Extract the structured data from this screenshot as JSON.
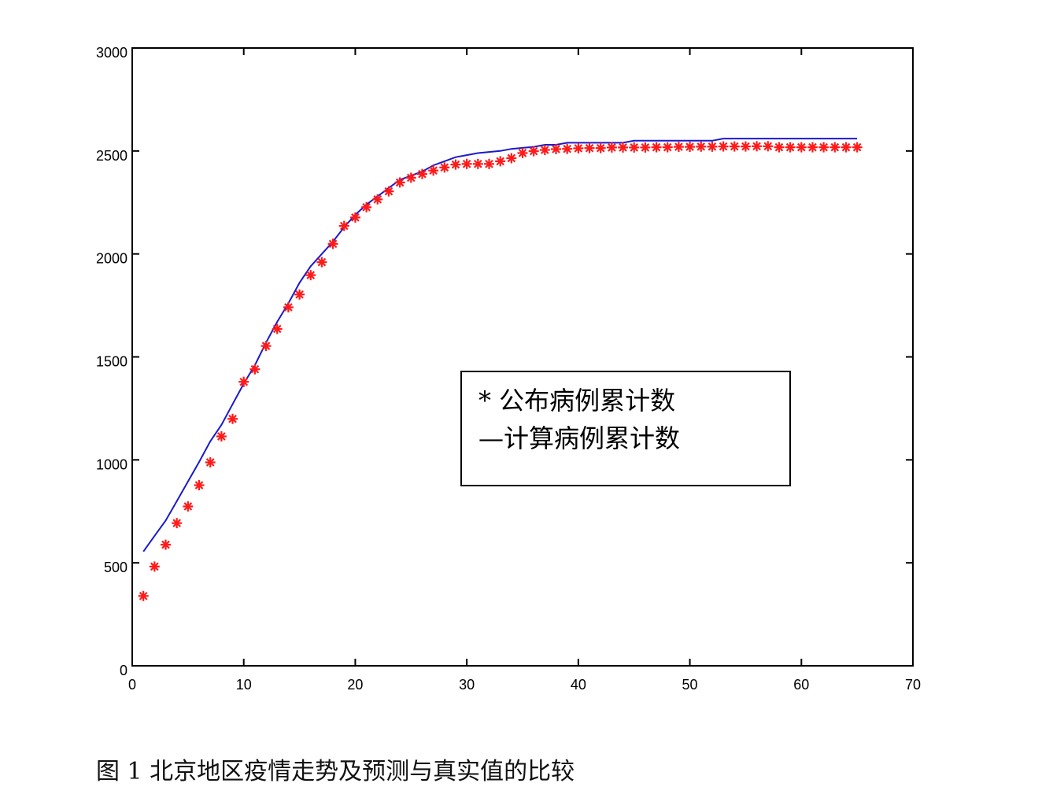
{
  "caption": "图 1 北京地区疫情走势及预测与真实值的比较",
  "colors": {
    "observed": "#ff1a1a",
    "computed": "#1a1acc",
    "axis": "#000000"
  },
  "chart_data": {
    "type": "line",
    "title": "",
    "xlabel": "",
    "ylabel": "",
    "xlim": [
      0,
      70
    ],
    "ylim": [
      0,
      3000
    ],
    "xticks": [
      0,
      10,
      20,
      30,
      40,
      50,
      60,
      70
    ],
    "yticks": [
      0,
      500,
      1000,
      1500,
      2000,
      2500,
      3000
    ],
    "grid": false,
    "legend_position": "center-right",
    "series": [
      {
        "name": "公布病例累计数",
        "legend_label": "*  公布病例累计数",
        "style": "marker-star",
        "x": [
          1,
          2,
          3,
          4,
          5,
          6,
          7,
          8,
          9,
          10,
          11,
          12,
          13,
          14,
          15,
          16,
          17,
          18,
          19,
          20,
          21,
          22,
          23,
          24,
          25,
          26,
          27,
          28,
          29,
          30,
          31,
          32,
          33,
          34,
          35,
          36,
          37,
          38,
          39,
          40,
          41,
          42,
          43,
          44,
          45,
          46,
          47,
          48,
          49,
          50,
          51,
          52,
          53,
          54,
          55,
          56,
          57,
          58,
          59,
          60,
          61,
          62,
          63,
          64,
          65
        ],
        "y": [
          339,
          482,
          588,
          693,
          774,
          877,
          988,
          1114,
          1199,
          1379,
          1440,
          1553,
          1636,
          1741,
          1803,
          1897,
          1960,
          2049,
          2136,
          2177,
          2227,
          2265,
          2304,
          2347,
          2370,
          2388,
          2405,
          2420,
          2434,
          2437,
          2437,
          2437,
          2450,
          2465,
          2490,
          2499,
          2505,
          2509,
          2510,
          2513,
          2514,
          2514,
          2517,
          2517,
          2517,
          2517,
          2518,
          2518,
          2520,
          2520,
          2521,
          2521,
          2522,
          2522,
          2522,
          2523,
          2523,
          2518,
          2518,
          2518,
          2518,
          2518,
          2518,
          2518,
          2518
        ]
      },
      {
        "name": "计算病例累计数",
        "legend_label": "—计算病例累计数",
        "style": "line",
        "x": [
          1,
          2,
          3,
          4,
          5,
          6,
          7,
          8,
          9,
          10,
          11,
          12,
          13,
          14,
          15,
          16,
          17,
          18,
          19,
          20,
          21,
          22,
          23,
          24,
          25,
          26,
          27,
          28,
          29,
          30,
          31,
          32,
          33,
          34,
          35,
          36,
          37,
          38,
          39,
          40,
          41,
          42,
          43,
          44,
          45,
          46,
          47,
          48,
          49,
          50,
          51,
          52,
          53,
          54,
          55,
          56,
          57,
          58,
          59,
          60,
          61,
          62,
          63,
          64,
          65
        ],
        "y": [
          555,
          630,
          705,
          800,
          895,
          990,
          1090,
          1170,
          1270,
          1370,
          1460,
          1570,
          1670,
          1760,
          1860,
          1940,
          2000,
          2060,
          2130,
          2190,
          2240,
          2280,
          2320,
          2360,
          2380,
          2400,
          2430,
          2450,
          2470,
          2480,
          2490,
          2495,
          2500,
          2510,
          2515,
          2520,
          2530,
          2530,
          2540,
          2540,
          2540,
          2540,
          2540,
          2540,
          2550,
          2550,
          2550,
          2550,
          2550,
          2550,
          2550,
          2550,
          2560,
          2560,
          2560,
          2560,
          2560,
          2560,
          2560,
          2560,
          2560,
          2560,
          2560,
          2560,
          2560
        ]
      }
    ]
  }
}
